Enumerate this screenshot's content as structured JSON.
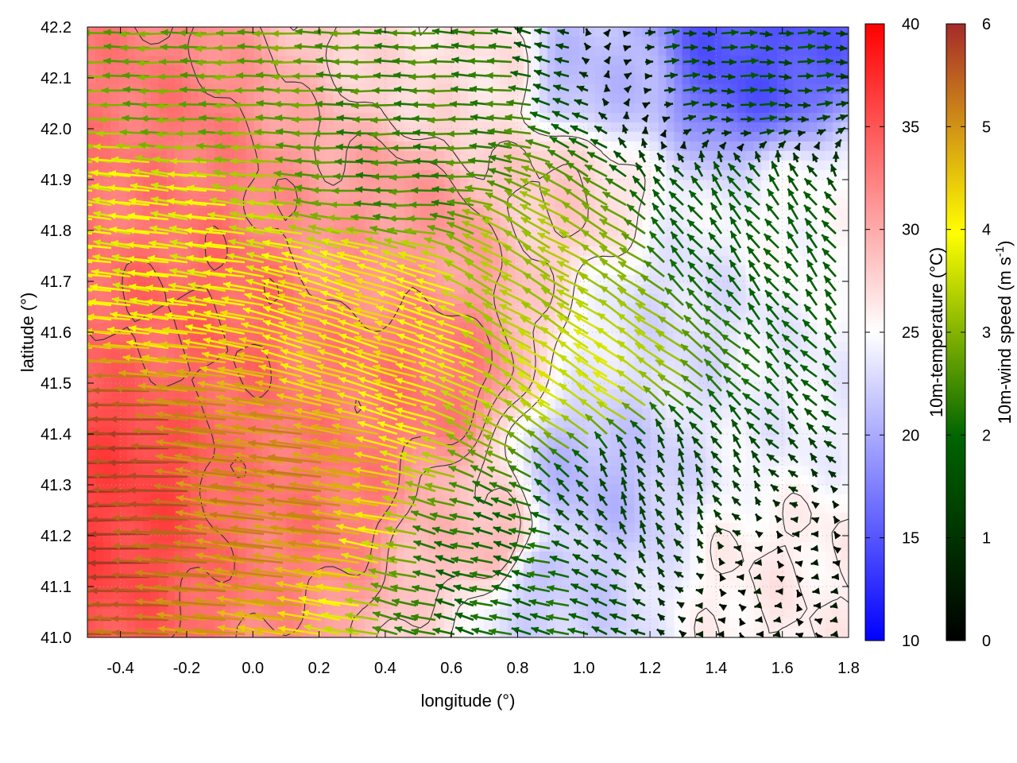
{
  "chart_data": {
    "type": "heatmap",
    "title": "",
    "xlabel": "longitude (°)",
    "ylabel": "latitude (°)",
    "xlim": [
      -0.5,
      1.8
    ],
    "ylim": [
      41.0,
      42.2
    ],
    "x_ticks": [
      "-0.4",
      "-0.2",
      "0.0",
      "0.2",
      "0.4",
      "0.6",
      "0.8",
      "1.0",
      "1.2",
      "1.4",
      "1.6",
      "1.8"
    ],
    "y_ticks": [
      "41.0",
      "41.1",
      "41.2",
      "41.3",
      "41.4",
      "41.5",
      "41.6",
      "41.7",
      "41.8",
      "41.9",
      "42.0",
      "42.1",
      "42.2"
    ],
    "grid": true,
    "temperature_colorbar": {
      "label": "10m-temperature (°C)",
      "range": [
        10,
        40
      ],
      "ticks": [
        "10",
        "15",
        "20",
        "25",
        "30",
        "35",
        "40"
      ],
      "colors": [
        "#0000ff",
        "#ffffff",
        "#ff0000"
      ]
    },
    "wind_colorbar": {
      "label_main": "10m-wind speed (m s",
      "label_sup": "-1",
      "label_end": ")",
      "range": [
        0,
        6
      ],
      "ticks": [
        "0",
        "1",
        "2",
        "3",
        "4",
        "5",
        "6"
      ],
      "colors": [
        "#000000",
        "#006400",
        "#ffff00",
        "#a52a2a"
      ]
    },
    "temperature_field": {
      "description_points": [
        {
          "lon": -0.45,
          "lat": 41.3,
          "t": 36
        },
        {
          "lon": -0.4,
          "lat": 41.9,
          "t": 33
        },
        {
          "lon": -0.2,
          "lat": 41.6,
          "t": 34
        },
        {
          "lon": 0.2,
          "lat": 41.3,
          "t": 33
        },
        {
          "lon": 0.5,
          "lat": 41.5,
          "t": 33
        },
        {
          "lon": 0.5,
          "lat": 41.8,
          "t": 31
        },
        {
          "lon": 0.7,
          "lat": 41.2,
          "t": 29
        },
        {
          "lon": 0.9,
          "lat": 41.9,
          "t": 28
        },
        {
          "lon": 0.7,
          "lat": 42.1,
          "t": 27
        },
        {
          "lon": 1.0,
          "lat": 41.3,
          "t": 21
        },
        {
          "lon": 0.9,
          "lat": 41.1,
          "t": 22
        },
        {
          "lon": 1.3,
          "lat": 41.6,
          "t": 23
        },
        {
          "lon": 1.5,
          "lat": 42.15,
          "t": 15
        },
        {
          "lon": 1.0,
          "lat": 42.1,
          "t": 21
        },
        {
          "lon": 1.6,
          "lat": 41.5,
          "t": 24
        },
        {
          "lon": 1.6,
          "lat": 41.1,
          "t": 26
        },
        {
          "lon": 1.7,
          "lat": 41.8,
          "t": 25
        }
      ]
    },
    "wind_field": {
      "sources": [
        {
          "lon": -0.45,
          "lat": 41.3,
          "u": -5.8,
          "v": 0.0
        },
        {
          "lon": 0.1,
          "lat": 41.3,
          "u": -5.0,
          "v": 0.7
        },
        {
          "lon": 0.4,
          "lat": 41.6,
          "u": -4.0,
          "v": 1.2
        },
        {
          "lon": -0.3,
          "lat": 41.8,
          "u": -3.8,
          "v": 0.5
        },
        {
          "lon": -0.2,
          "lat": 42.1,
          "u": -2.8,
          "v": 0.0
        },
        {
          "lon": 0.5,
          "lat": 41.95,
          "u": -2.4,
          "v": 0.0
        },
        {
          "lon": 0.9,
          "lat": 41.7,
          "u": -2.8,
          "v": 1.6
        },
        {
          "lon": 1.05,
          "lat": 41.5,
          "u": -3.0,
          "v": 2.0
        },
        {
          "lon": 1.2,
          "lat": 41.3,
          "u": -0.6,
          "v": 1.2
        },
        {
          "lon": 1.5,
          "lat": 41.8,
          "u": -1.2,
          "v": 1.5
        },
        {
          "lon": 1.6,
          "lat": 41.05,
          "u": -0.3,
          "v": 0.0
        },
        {
          "lon": 1.5,
          "lat": 42.1,
          "u": 1.5,
          "v": 0.0
        },
        {
          "lon": 0.8,
          "lat": 41.1,
          "u": -2.0,
          "v": 0.5
        }
      ]
    },
    "contours": {
      "levels": [
        26,
        28,
        30,
        32,
        34
      ],
      "color": "#333333"
    }
  }
}
